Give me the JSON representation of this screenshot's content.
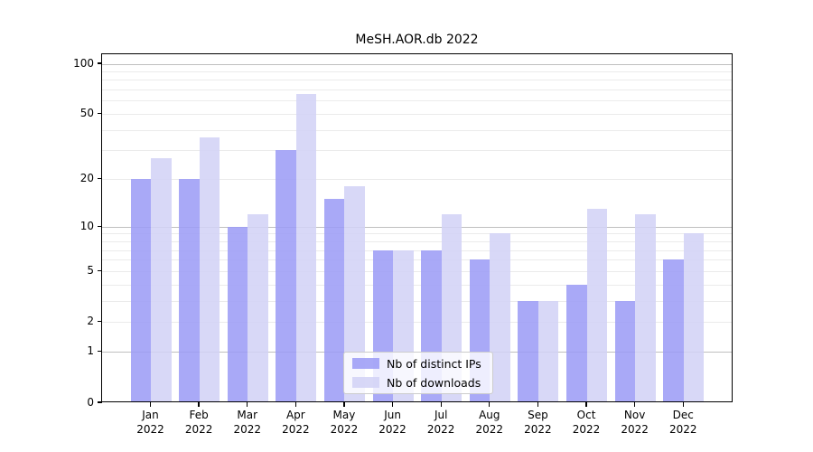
{
  "chart_data": {
    "type": "bar",
    "title": "MeSH.AOR.db 2022",
    "categories": [
      "Jan 2022",
      "Feb 2022",
      "Mar 2022",
      "Apr 2022",
      "May 2022",
      "Jun 2022",
      "Jul 2022",
      "Aug 2022",
      "Sep 2022",
      "Oct 2022",
      "Nov 2022",
      "Dec 2022"
    ],
    "x_tick_line1": [
      "Jan",
      "Feb",
      "Mar",
      "Apr",
      "May",
      "Jun",
      "Jul",
      "Aug",
      "Sep",
      "Oct",
      "Nov",
      "Dec"
    ],
    "x_tick_line2": "2022",
    "series": [
      {
        "name": "Nb of distinct IPs",
        "color": "#9d9df6",
        "values": [
          20,
          20,
          10,
          30,
          15,
          7,
          7,
          6,
          3,
          4,
          3,
          6
        ]
      },
      {
        "name": "Nb of downloads",
        "color": "#d3d3f6",
        "values": [
          27,
          36,
          12,
          66,
          18,
          7,
          12,
          9,
          3,
          13,
          12,
          9
        ]
      }
    ],
    "y_ticks": [
      100,
      50,
      20,
      10,
      5,
      2,
      1,
      0
    ],
    "y_scale": "log1p",
    "ylim": [
      0,
      114
    ],
    "xlabel": "",
    "ylabel": "",
    "grid": "on",
    "legend_position": "lower-center-inside",
    "colors": {
      "distinct_ips_bar": "#a8a8f7",
      "downloads_bar": "#d8d8f7",
      "major_gridline": "#bfbfbf",
      "minor_gridline": "#ebebeb",
      "axis": "#000000"
    }
  }
}
